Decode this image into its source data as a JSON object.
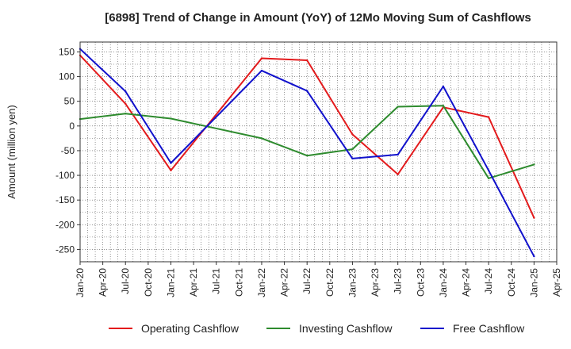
{
  "chart_data": {
    "type": "line",
    "title": "[6898]  Trend of Change in Amount (YoY) of 12Mo Moving Sum of Cashflows",
    "xlabel": "",
    "ylabel": "Amount (million yen)",
    "ylim": [
      -275,
      170
    ],
    "yticks": [
      150,
      100,
      50,
      0,
      -50,
      -100,
      -150,
      -200,
      -250
    ],
    "x_tick_labels": [
      "Jan-20",
      "Apr-20",
      "Jul-20",
      "Oct-20",
      "Jan-21",
      "Apr-21",
      "Jul-21",
      "Oct-21",
      "Jan-22",
      "Apr-22",
      "Jul-22",
      "Oct-22",
      "Jan-23",
      "Apr-23",
      "Jul-23",
      "Oct-23",
      "Jan-24",
      "Apr-24",
      "Jul-24",
      "Oct-24",
      "Jan-25",
      "Apr-25"
    ],
    "grid": true,
    "legend_position": "bottom",
    "series": [
      {
        "name": "Operating Cashflow",
        "color": "#e31a1c",
        "points": [
          {
            "x": "Jan-20",
            "y": 143
          },
          {
            "x": "Jul-20",
            "y": 45
          },
          {
            "x": "Jan-21",
            "y": -90
          },
          {
            "x": "Jan-22",
            "y": 137
          },
          {
            "x": "Jul-22",
            "y": 133
          },
          {
            "x": "Jan-23",
            "y": -17
          },
          {
            "x": "Jul-23",
            "y": -98
          },
          {
            "x": "Jan-24",
            "y": 38
          },
          {
            "x": "Jul-24",
            "y": 18
          },
          {
            "x": "Jan-25",
            "y": -186
          }
        ]
      },
      {
        "name": "Investing Cashflow",
        "color": "#2e8b2e",
        "points": [
          {
            "x": "Jan-20",
            "y": 14
          },
          {
            "x": "Jul-20",
            "y": 25
          },
          {
            "x": "Jan-21",
            "y": 15
          },
          {
            "x": "Jan-22",
            "y": -25
          },
          {
            "x": "Jul-22",
            "y": -60
          },
          {
            "x": "Jan-23",
            "y": -47
          },
          {
            "x": "Jul-23",
            "y": 39
          },
          {
            "x": "Jan-24",
            "y": 41
          },
          {
            "x": "Jul-24",
            "y": -106
          },
          {
            "x": "Jan-25",
            "y": -78
          }
        ]
      },
      {
        "name": "Free Cashflow",
        "color": "#1111cc",
        "points": [
          {
            "x": "Jan-20",
            "y": 156
          },
          {
            "x": "Jul-20",
            "y": 70
          },
          {
            "x": "Jan-21",
            "y": -75
          },
          {
            "x": "Jan-22",
            "y": 112
          },
          {
            "x": "Jul-22",
            "y": 71
          },
          {
            "x": "Jan-23",
            "y": -66
          },
          {
            "x": "Jul-23",
            "y": -58
          },
          {
            "x": "Jan-24",
            "y": 80
          },
          {
            "x": "Jul-24",
            "y": -90
          },
          {
            "x": "Jan-25",
            "y": -264
          }
        ]
      }
    ]
  }
}
